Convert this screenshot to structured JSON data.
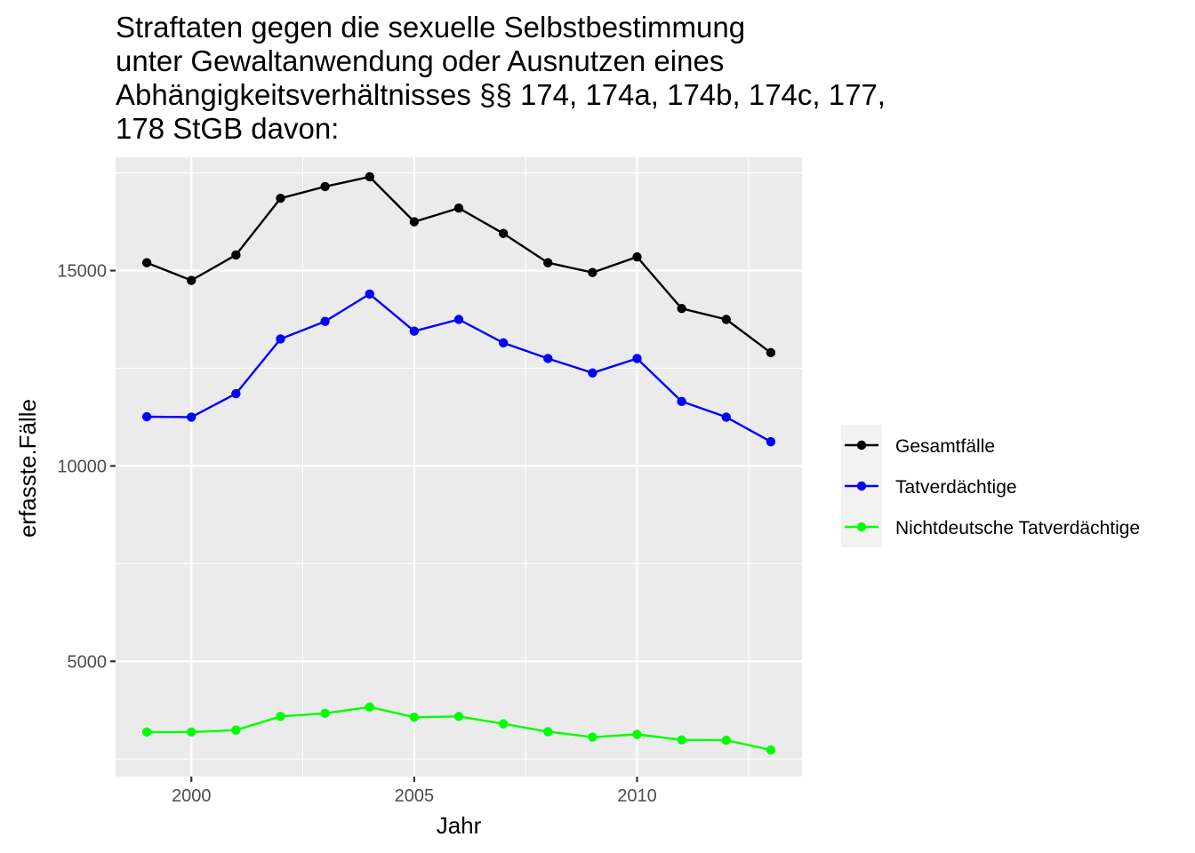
{
  "chart_data": {
    "type": "line",
    "title_lines": [
      "Straftaten gegen die sexuelle Selbstbestimmung",
      "unter Gewaltanwendung oder Ausnutzen eines",
      "Abhängigkeitsverhältnisses §§ 174, 174a, 174b, 174c, 177,",
      "178 StGB davon:"
    ],
    "xlabel": "Jahr",
    "ylabel": "erfasste.Fälle",
    "x": [
      1999,
      2000,
      2001,
      2002,
      2003,
      2004,
      2005,
      2006,
      2007,
      2008,
      2009,
      2010,
      2011,
      2012,
      2013
    ],
    "xlim": [
      1998.3,
      2013.7
    ],
    "ylim": [
      2050,
      17900
    ],
    "x_ticks": [
      2000,
      2005,
      2010
    ],
    "y_ticks": [
      5000,
      10000,
      15000
    ],
    "grid": true,
    "legend_position": "right",
    "series": [
      {
        "name": "Gesamtfälle",
        "color": "#000000",
        "values": [
          15200,
          14750,
          15400,
          16850,
          17150,
          17400,
          16250,
          16600,
          15950,
          15200,
          14950,
          15350,
          14030,
          13750,
          12900
        ]
      },
      {
        "name": "Tatverdächtige",
        "color": "#0000ff",
        "values": [
          11260,
          11250,
          11850,
          13250,
          13700,
          14400,
          13450,
          13750,
          13150,
          12750,
          12380,
          12750,
          11650,
          11250,
          10620
        ]
      },
      {
        "name": "Nichtdeutsche Tatverdächtige",
        "color": "#00ff00",
        "values": [
          3190,
          3190,
          3240,
          3590,
          3670,
          3830,
          3570,
          3590,
          3400,
          3200,
          3060,
          3130,
          2990,
          2980,
          2730
        ]
      }
    ]
  },
  "colors": {
    "panel_background": "#ebebeb",
    "grid_major": "#ffffff",
    "legend_key_background": "#f2f2f2",
    "tick_text": "#4d4d4d"
  }
}
